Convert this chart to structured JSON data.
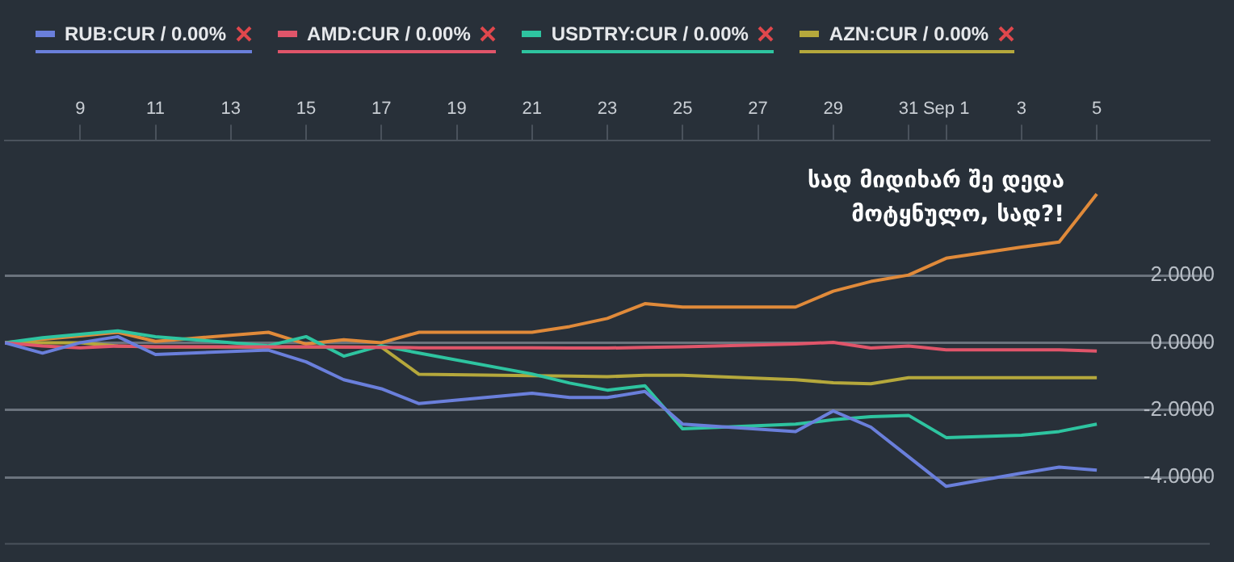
{
  "chart_data": {
    "type": "line",
    "x": [
      "--08-07",
      "--08-08",
      "--08-09",
      "--08-10",
      "--08-11",
      "--08-14",
      "--08-15",
      "--08-16",
      "--08-17",
      "--08-18",
      "--08-21",
      "--08-22",
      "--08-23",
      "--08-24",
      "--08-25",
      "--08-28",
      "--08-29",
      "--08-30",
      "--08-31",
      "--09-01",
      "--09-03",
      "--09-04",
      "--09-05"
    ],
    "series": [
      {
        "name": "RUB:CUR / 0.00%",
        "color": "#6a7fdb",
        "values": [
          0,
          -0.31,
          0,
          0.18,
          -0.35,
          -0.22,
          -0.57,
          -1.1,
          -1.37,
          -1.81,
          -1.5,
          -1.63,
          -1.63,
          -1.45,
          -2.42,
          -2.64,
          -2.03,
          -2.51,
          -3.39,
          -4.27,
          -3.88,
          -3.7,
          -3.79
        ]
      },
      {
        "name": "AMD:CUR / 0.00%",
        "color": "#e0556a",
        "values": [
          0,
          -0.1,
          -0.15,
          -0.1,
          -0.12,
          -0.12,
          -0.12,
          -0.13,
          -0.14,
          -0.15,
          -0.15,
          -0.16,
          -0.16,
          -0.14,
          -0.12,
          -0.04,
          0.01,
          -0.16,
          -0.1,
          -0.21,
          -0.21,
          -0.21,
          -0.25
        ]
      },
      {
        "name": "USDTRY:CUR / 0.00%",
        "color": "#2ec4a0",
        "values": [
          0,
          0.15,
          0.25,
          0.35,
          0.18,
          -0.09,
          0.18,
          -0.4,
          -0.09,
          -0.31,
          -0.93,
          -1.2,
          -1.41,
          -1.28,
          -2.56,
          -2.42,
          -2.29,
          -2.2,
          -2.16,
          -2.82,
          -2.75,
          -2.64,
          -2.42
        ]
      },
      {
        "name": "AZN:CUR / 0.00%",
        "color": "#b5a83c",
        "values": [
          0,
          0,
          0,
          -0.1,
          -0.13,
          -0.13,
          -0.13,
          -0.13,
          -0.13,
          -0.94,
          -0.98,
          -0.99,
          -1.01,
          -0.97,
          -0.97,
          -1.1,
          -1.19,
          -1.22,
          -1.04,
          -1.04,
          -1.04,
          -1.04,
          -1.04
        ]
      },
      {
        "color": "#e08a3a",
        "values": [
          0,
          0.1,
          0.2,
          0.31,
          0.04,
          0.31,
          -0.04,
          0.09,
          0,
          0.31,
          0.31,
          0.48,
          0.72,
          1.16,
          1.06,
          1.06,
          1.53,
          1.82,
          2.01,
          2.51,
          2.84,
          2.99,
          4.42
        ]
      }
    ],
    "xlim": [
      "--08-07",
      "--09-08"
    ],
    "xticks": [
      {
        "value": "--08-09",
        "label": "9"
      },
      {
        "value": "--08-11",
        "label": "11"
      },
      {
        "value": "--08-13",
        "label": "13"
      },
      {
        "value": "--08-15",
        "label": "15"
      },
      {
        "value": "--08-17",
        "label": "17"
      },
      {
        "value": "--08-19",
        "label": "19"
      },
      {
        "value": "--08-21",
        "label": "21"
      },
      {
        "value": "--08-23",
        "label": "23"
      },
      {
        "value": "--08-25",
        "label": "25"
      },
      {
        "value": "--08-27",
        "label": "27"
      },
      {
        "value": "--08-29",
        "label": "29"
      },
      {
        "value": "--08-31",
        "label": "31"
      },
      {
        "value": "--09-01",
        "label": "Sep 1"
      },
      {
        "value": "--09-03",
        "label": "3"
      },
      {
        "value": "--09-05",
        "label": "5"
      }
    ],
    "ylim": [
      -6,
      6
    ],
    "yticks": [
      {
        "value": 2,
        "label": "2.0000"
      },
      {
        "value": 0,
        "label": "0.0000"
      },
      {
        "value": -2,
        "label": "-2.0000"
      },
      {
        "value": -4,
        "label": "-4.0000"
      }
    ],
    "grid": "y",
    "legend": "top left",
    "marker": "none",
    "line_style": "solid",
    "annotations": [
      "სად მიდიხარ შე დედა მოტყნულო, სად?!"
    ]
  }
}
